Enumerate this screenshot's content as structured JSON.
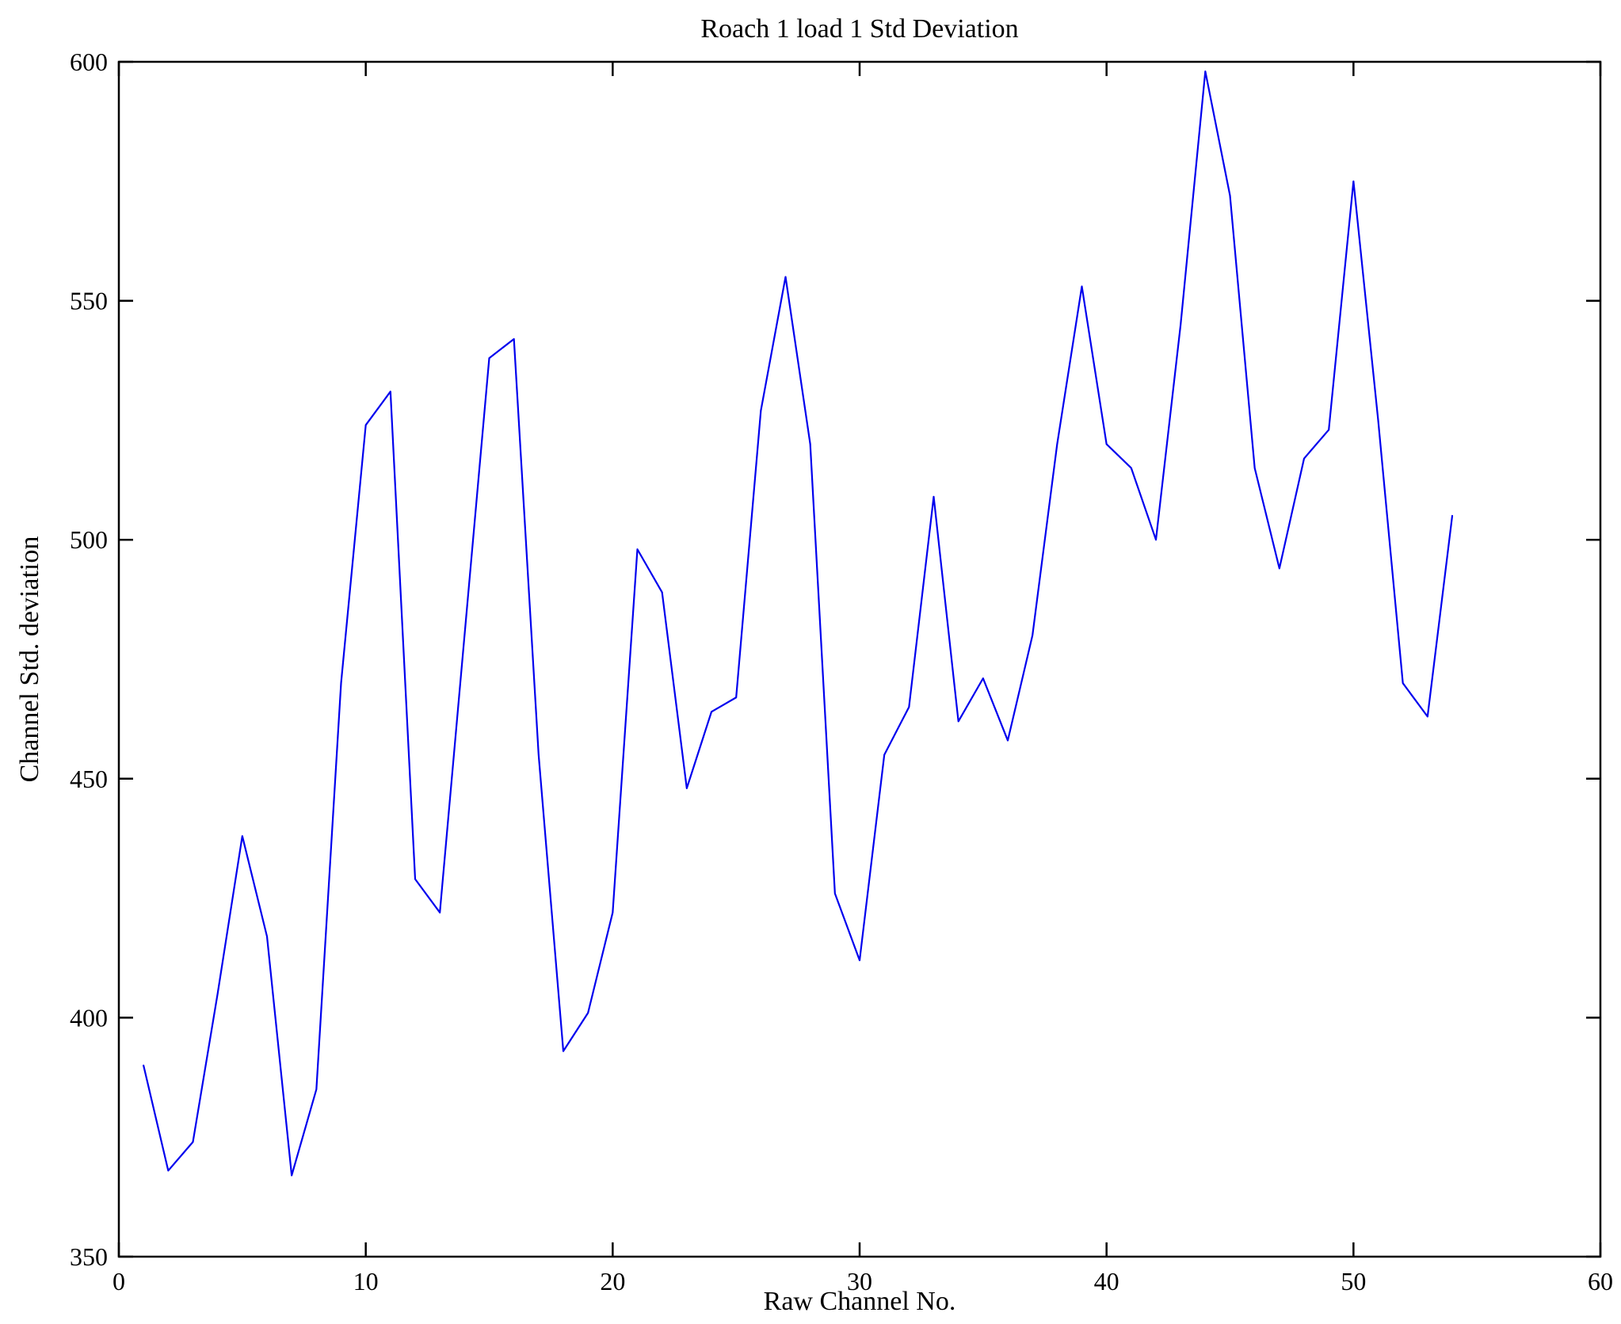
{
  "figure": {
    "background": "#ffffff",
    "frame_color": "#000000",
    "line_color": "#0000ee"
  },
  "chart_data": {
    "type": "line",
    "title": "Roach 1 load 1 Std Deviation",
    "xlabel": "Raw Channel No.",
    "ylabel": "Channel Std. deviation",
    "xlim": [
      0,
      60
    ],
    "ylim": [
      350,
      600
    ],
    "xticks": [
      0,
      10,
      20,
      30,
      40,
      50,
      60
    ],
    "yticks": [
      350,
      400,
      450,
      500,
      550,
      600
    ],
    "grid": false,
    "legend": null,
    "series": [
      {
        "name": "Channel Std. deviation",
        "x": [
          1,
          2,
          3,
          4,
          5,
          6,
          7,
          8,
          9,
          10,
          11,
          12,
          13,
          14,
          15,
          16,
          17,
          18,
          19,
          20,
          21,
          22,
          23,
          24,
          25,
          26,
          27,
          28,
          29,
          30,
          31,
          32,
          33,
          34,
          35,
          36,
          37,
          38,
          39,
          40,
          41,
          42,
          43,
          44,
          45,
          46,
          47,
          48,
          49,
          50,
          51,
          52,
          53,
          54
        ],
        "y": [
          390,
          368,
          374,
          405,
          438,
          417,
          367,
          385,
          470,
          524,
          531,
          429,
          422,
          480,
          538,
          542,
          455,
          393,
          401,
          422,
          498,
          489,
          448,
          464,
          467,
          527,
          555,
          520,
          426,
          412,
          455,
          465,
          509,
          462,
          471,
          458,
          480,
          520,
          553,
          520,
          515,
          500,
          545,
          598,
          572,
          515,
          494,
          517,
          523,
          575,
          525,
          470,
          463,
          505
        ]
      }
    ]
  }
}
